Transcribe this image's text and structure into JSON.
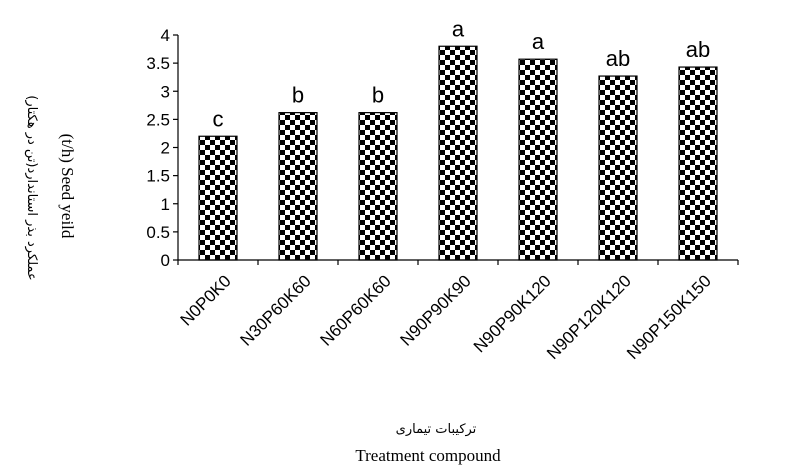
{
  "chart_data": {
    "type": "bar",
    "categories": [
      "N0P0K0",
      "N30P60K60",
      "N60P60K60",
      "N90P90K90",
      "N90P90K120",
      "N90P120K120",
      "N90P150K150"
    ],
    "values": [
      2.2,
      2.62,
      2.62,
      3.8,
      3.57,
      3.27,
      3.43
    ],
    "significance_letters": [
      "c",
      "b",
      "b",
      "a",
      "a",
      "ab",
      "ab"
    ],
    "ylim": [
      0,
      4
    ],
    "yticks": [
      "0",
      "0.5",
      "1",
      "1.5",
      "2",
      "2.5",
      "3",
      "3.5",
      "4"
    ],
    "ylabel_fa": "عملکرد بذر استاندارد(تن در هکتار)",
    "ylabel": "(t/h) Seed yeild",
    "xlabel_fa": "ترکیبات تیماری",
    "xlabel": "Treatment compound",
    "grid": false,
    "legend": "none",
    "bar_pattern": "checkerboard",
    "colors": {
      "bar_dark": "#000000",
      "bar_light": "#ffffff"
    }
  }
}
